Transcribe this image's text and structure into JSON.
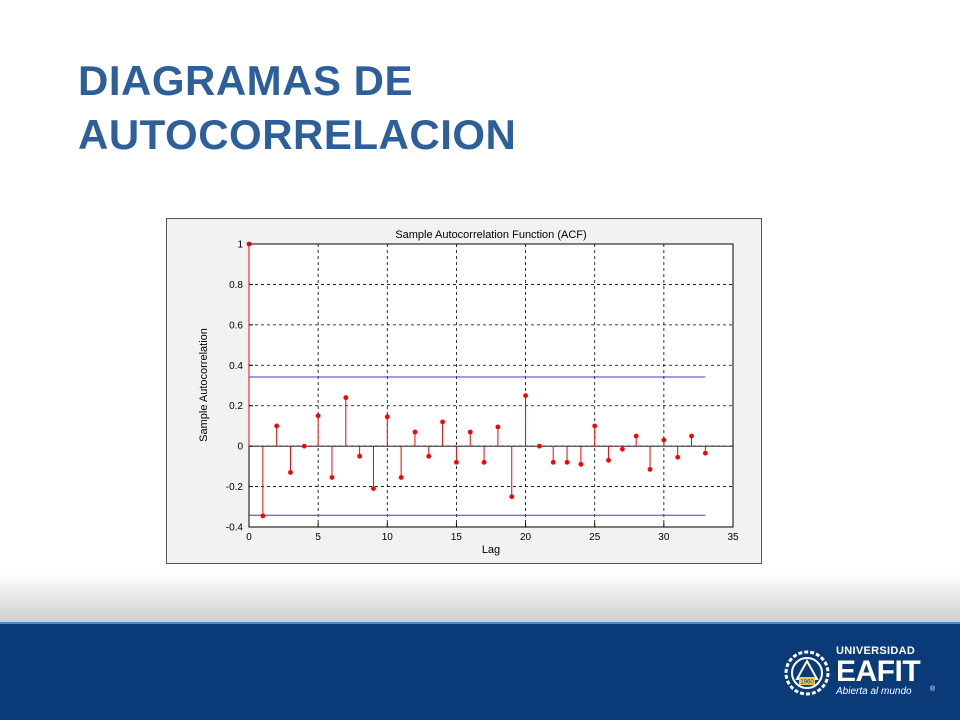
{
  "slide": {
    "title_line1": "DIAGRAMAS DE",
    "title_line2": "AUTOCORRELACION"
  },
  "footer": {
    "logo_top": "UNIVERSIDAD",
    "logo_main": "EAFIT",
    "logo_sub": "Abierta al mundo",
    "logo_reg": "®",
    "logo_seal_year": "1960",
    "logo_icon": "eafit-seal-icon"
  },
  "colors": {
    "title": "#2d5f9a",
    "footer": "#0a3b78",
    "stem": "#ff0000",
    "bounds": "#3c3ccf"
  },
  "chart_data": {
    "type": "stem",
    "title": "Sample Autocorrelation Function (ACF)",
    "xlabel": "Lag",
    "ylabel": "Sample Autocorrelation",
    "xlim": [
      0,
      35
    ],
    "ylim": [
      -0.4,
      1
    ],
    "xticks": [
      0,
      5,
      10,
      15,
      20,
      25,
      30,
      35
    ],
    "yticks": [
      -0.4,
      -0.2,
      0,
      0.2,
      0.4,
      0.6,
      0.8,
      1
    ],
    "grid": true,
    "x": [
      0,
      1,
      2,
      3,
      4,
      5,
      6,
      7,
      8,
      9,
      10,
      11,
      12,
      13,
      14,
      15,
      16,
      17,
      18,
      19,
      20,
      21,
      22,
      23,
      24,
      25,
      26,
      27,
      28,
      29,
      30,
      31,
      32,
      33
    ],
    "values": [
      1.0,
      -0.345,
      0.1,
      -0.13,
      0.0,
      0.15,
      -0.155,
      0.24,
      -0.05,
      -0.21,
      0.145,
      -0.155,
      0.07,
      -0.05,
      0.12,
      -0.08,
      0.07,
      -0.08,
      0.095,
      -0.25,
      0.25,
      0.0,
      -0.08,
      -0.08,
      -0.09,
      0.1,
      -0.07,
      -0.015,
      0.05,
      -0.115,
      0.03,
      -0.055,
      0.05,
      -0.035
    ],
    "bounds": {
      "upper": 0.342,
      "lower": -0.342,
      "x_range": [
        0,
        33
      ]
    }
  }
}
